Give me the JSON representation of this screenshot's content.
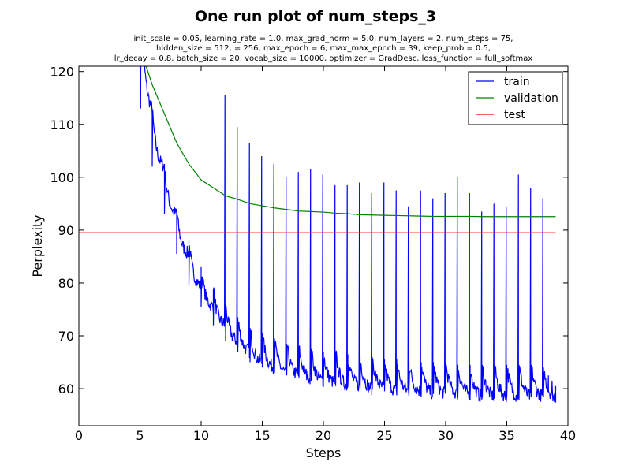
{
  "chart_data": {
    "type": "line",
    "title": "One run plot of num_steps_3",
    "subtitle_lines": [
      "init_scale = 0.05, learning_rate = 1.0, max_grad_norm = 5.0, num_layers = 2, num_steps = 75,",
      "hidden_size = 512,    = 256, max_epoch = 6, max_max_epoch = 39, keep_prob = 0.5,",
      "lr_decay = 0.8, batch_size = 20, vocab_size = 10000, optimizer = GradDesc, loss_function = full_softmax"
    ],
    "xlabel": "Steps",
    "ylabel": "Perplexity",
    "xlim": [
      0,
      40
    ],
    "ylim": [
      53,
      121
    ],
    "xticks": [
      0,
      5,
      10,
      15,
      20,
      25,
      30,
      35,
      40
    ],
    "yticks": [
      60,
      70,
      80,
      90,
      100,
      110,
      120
    ],
    "grid": false,
    "legend_position": "top-right",
    "series": [
      {
        "name": "train",
        "color": "#0000ff",
        "kind": "sawtooth",
        "epochs": [
          {
            "start": 5,
            "peak": 140,
            "low": 113
          },
          {
            "start": 6,
            "peak": 113,
            "low": 102
          },
          {
            "start": 7,
            "peak": 102.5,
            "low": 93
          },
          {
            "start": 8,
            "peak": 94,
            "low": 85.5
          },
          {
            "start": 9,
            "peak": 88,
            "low": 79.5
          },
          {
            "start": 10,
            "peak": 83,
            "low": 75.5
          },
          {
            "start": 11,
            "peak": 79,
            "low": 72
          },
          {
            "start": 12,
            "peak": 76,
            "low": 69
          },
          {
            "start": 13,
            "peak": 73.5,
            "low": 67
          },
          {
            "start": 14,
            "peak": 71.5,
            "low": 65
          },
          {
            "start": 15,
            "peak": 70.5,
            "low": 64
          },
          {
            "start": 16,
            "peak": 69.5,
            "low": 63
          },
          {
            "start": 17,
            "peak": 68.5,
            "low": 62.5
          },
          {
            "start": 18,
            "peak": 68,
            "low": 62
          },
          {
            "start": 19,
            "peak": 67.5,
            "low": 61.5
          },
          {
            "start": 20,
            "peak": 67,
            "low": 61
          },
          {
            "start": 21,
            "peak": 67,
            "low": 60.5
          },
          {
            "start": 22,
            "peak": 66.5,
            "low": 60.5
          },
          {
            "start": 23,
            "peak": 66,
            "low": 60
          },
          {
            "start": 24,
            "peak": 66,
            "low": 60
          },
          {
            "start": 25,
            "peak": 65.5,
            "low": 59.5
          },
          {
            "start": 26,
            "peak": 65.5,
            "low": 59.5
          },
          {
            "start": 27,
            "peak": 65,
            "low": 59.5
          },
          {
            "start": 28,
            "peak": 65,
            "low": 59
          },
          {
            "start": 29,
            "peak": 65,
            "low": 59
          },
          {
            "start": 30,
            "peak": 65,
            "low": 59
          },
          {
            "start": 31,
            "peak": 64.5,
            "low": 59
          },
          {
            "start": 32,
            "peak": 64.5,
            "low": 58.5
          },
          {
            "start": 33,
            "peak": 64.5,
            "low": 58.5
          },
          {
            "start": 34,
            "peak": 64.5,
            "low": 58.5
          },
          {
            "start": 35,
            "peak": 64.5,
            "low": 58.5
          },
          {
            "start": 36,
            "peak": 64.5,
            "low": 58.5
          },
          {
            "start": 37,
            "peak": 64.5,
            "low": 58.5
          },
          {
            "start": 38,
            "peak": 64,
            "low": 58.5
          }
        ],
        "spikes": [
          {
            "x": 5.05,
            "y": 113
          },
          {
            "x": 6.0,
            "y": 102
          },
          {
            "x": 7.0,
            "y": 93
          },
          {
            "x": 8.0,
            "y": 85.5
          },
          {
            "x": 9.0,
            "y": 79.5
          },
          {
            "x": 10.0,
            "y": 75.5
          },
          {
            "x": 11.0,
            "y": 72
          },
          {
            "x": 11.95,
            "y": 115.5
          },
          {
            "x": 12.0,
            "y": 69
          },
          {
            "x": 12.95,
            "y": 109.5
          },
          {
            "x": 13.0,
            "y": 67
          },
          {
            "x": 13.95,
            "y": 106.5
          },
          {
            "x": 14.0,
            "y": 65
          },
          {
            "x": 14.95,
            "y": 104
          },
          {
            "x": 15.0,
            "y": 64
          },
          {
            "x": 15.95,
            "y": 102.5
          },
          {
            "x": 16.0,
            "y": 63
          },
          {
            "x": 16.95,
            "y": 100
          },
          {
            "x": 17.0,
            "y": 62.5
          },
          {
            "x": 17.95,
            "y": 101
          },
          {
            "x": 18.0,
            "y": 62
          },
          {
            "x": 18.95,
            "y": 101.5
          },
          {
            "x": 19.0,
            "y": 61.5
          },
          {
            "x": 19.95,
            "y": 100.5
          },
          {
            "x": 20.0,
            "y": 61
          },
          {
            "x": 20.95,
            "y": 98.5
          },
          {
            "x": 21.0,
            "y": 60.5
          },
          {
            "x": 21.95,
            "y": 98.5
          },
          {
            "x": 22.0,
            "y": 60.5
          },
          {
            "x": 22.95,
            "y": 99
          },
          {
            "x": 23.0,
            "y": 60
          },
          {
            "x": 23.95,
            "y": 97
          },
          {
            "x": 24.0,
            "y": 60
          },
          {
            "x": 24.95,
            "y": 99
          },
          {
            "x": 25.0,
            "y": 59.5
          },
          {
            "x": 25.95,
            "y": 97.5
          },
          {
            "x": 26.0,
            "y": 59.5
          },
          {
            "x": 26.95,
            "y": 94.5
          },
          {
            "x": 27.0,
            "y": 59.5
          },
          {
            "x": 27.95,
            "y": 97.5
          },
          {
            "x": 28.0,
            "y": 59
          },
          {
            "x": 28.95,
            "y": 96
          },
          {
            "x": 29.0,
            "y": 59
          },
          {
            "x": 29.95,
            "y": 97
          },
          {
            "x": 30.0,
            "y": 59
          },
          {
            "x": 30.95,
            "y": 100
          },
          {
            "x": 31.0,
            "y": 59
          },
          {
            "x": 31.95,
            "y": 97
          },
          {
            "x": 32.0,
            "y": 58.5
          },
          {
            "x": 32.95,
            "y": 93.5
          },
          {
            "x": 33.0,
            "y": 58.5
          },
          {
            "x": 33.95,
            "y": 95
          },
          {
            "x": 34.0,
            "y": 58.5
          },
          {
            "x": 34.95,
            "y": 94.5
          },
          {
            "x": 35.0,
            "y": 58.5
          },
          {
            "x": 35.95,
            "y": 100.5
          },
          {
            "x": 36.0,
            "y": 58.5
          },
          {
            "x": 36.95,
            "y": 98
          },
          {
            "x": 37.0,
            "y": 58.5
          },
          {
            "x": 37.95,
            "y": 96
          },
          {
            "x": 38.0,
            "y": 58.5
          }
        ],
        "tail": [
          {
            "x": 38.4,
            "y": 62.5
          },
          {
            "x": 38.7,
            "y": 61.5
          },
          {
            "x": 39.0,
            "y": 60.5
          }
        ]
      },
      {
        "name": "validation",
        "color": "#008000",
        "x": [
          5.5,
          6,
          7,
          8,
          9,
          10,
          11,
          12,
          13,
          14,
          15,
          16,
          17,
          18,
          19,
          20,
          21,
          22,
          23,
          24,
          25,
          26,
          27,
          28,
          29,
          30,
          31,
          32,
          33,
          34,
          35,
          36,
          37,
          38,
          39
        ],
        "y": [
          121,
          117.5,
          112,
          106.5,
          102.5,
          99.5,
          98,
          96.5,
          95.8,
          95,
          94.6,
          94.2,
          93.9,
          93.6,
          93.5,
          93.4,
          93.2,
          93.1,
          92.9,
          92.85,
          92.8,
          92.75,
          92.7,
          92.65,
          92.6,
          92.6,
          92.6,
          92.6,
          92.55,
          92.55,
          92.55,
          92.55,
          92.55,
          92.55,
          92.55
        ]
      },
      {
        "name": "test",
        "color": "#ff0000",
        "x": [
          0,
          39
        ],
        "y": [
          89.5,
          89.5
        ]
      }
    ]
  }
}
